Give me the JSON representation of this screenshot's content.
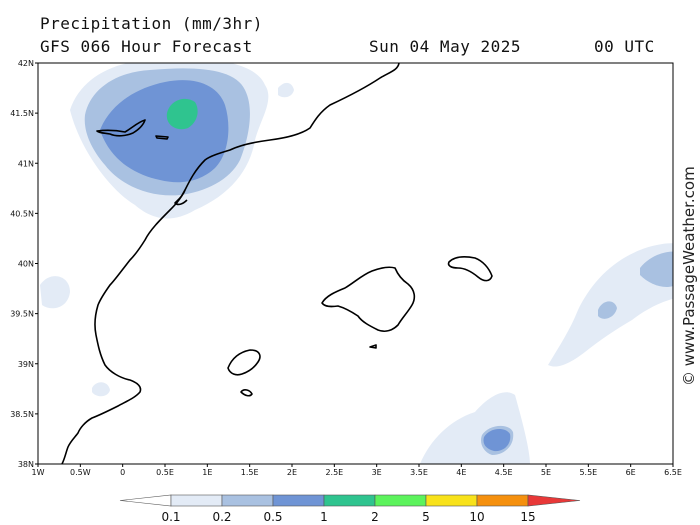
{
  "header": {
    "title": "Precipitation (mm/3hr)",
    "subtitle": "GFS 066 Hour Forecast",
    "date": "Sun 04 May 2025",
    "time": "00 UTC"
  },
  "credit": "© www.PassageWeather.com",
  "map": {
    "lon_range": [
      -1,
      6.5
    ],
    "lat_range": [
      38,
      42
    ],
    "lat_labels": [
      "42N",
      "41.5N",
      "41N",
      "40.5N",
      "40N",
      "39.5N",
      "39N",
      "38.5N",
      "38N"
    ],
    "lon_labels": [
      "1W",
      "0.5W",
      "0",
      "0.5E",
      "1E",
      "1.5E",
      "2E",
      "2.5E",
      "3E",
      "3.5E",
      "4E",
      "4.5E",
      "5E",
      "5.5E",
      "6E",
      "6.5E"
    ]
  },
  "colorbar": {
    "colors": [
      "#e3ebf6",
      "#a9c1e1",
      "#6f94d5",
      "#2fc48f",
      "#5cf35c",
      "#f8e21a",
      "#f5900e",
      "#e83838"
    ],
    "labels": [
      "0.1",
      "0.2",
      "0.5",
      "1",
      "2",
      "5",
      "10",
      "15"
    ]
  }
}
